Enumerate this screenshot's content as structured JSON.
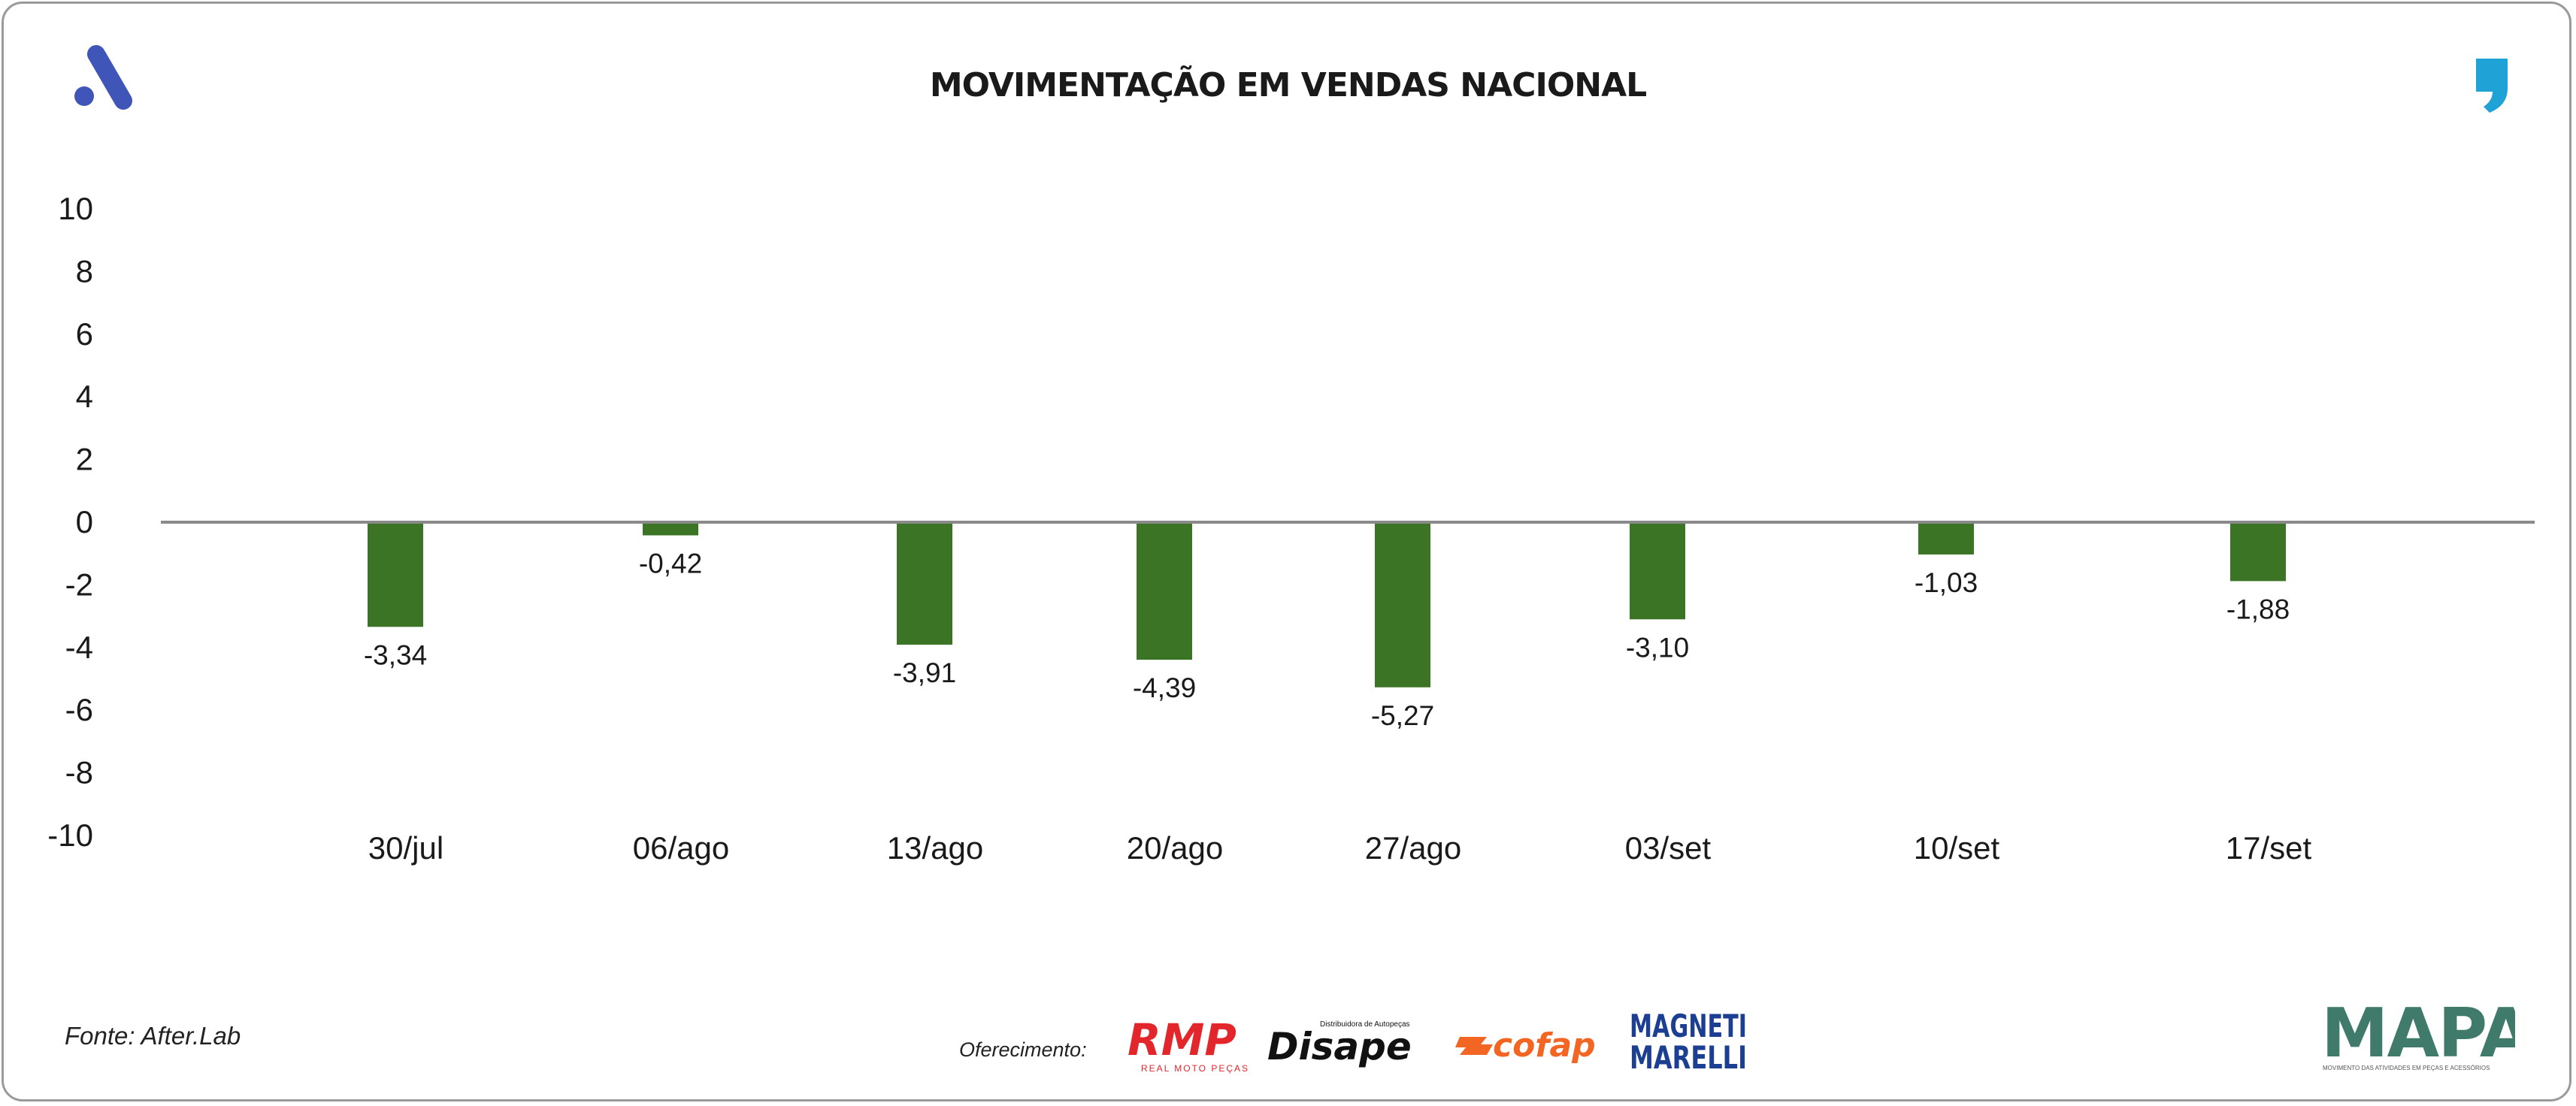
{
  "title": "MOVIMENTAÇÃO EM VENDAS NACIONAL",
  "source": "Fonte: After.Lab",
  "offer_label": "Oferecimento:",
  "colors": {
    "bar": "#3a7424",
    "axis": "#8a8a8a",
    "text": "#1a1a1a",
    "brand": "#3f56b8",
    "quote": "#1fa3d6"
  },
  "icons": {
    "brand_logo": "afterlab-a-logo",
    "quote": "comma-quote-icon"
  },
  "sponsors": [
    {
      "name": "RMP",
      "subtitle": "REAL MOTO PEÇAS",
      "color": "#e3262c"
    },
    {
      "name": "Disape",
      "subtitle": "Distribuidora de Autopeças",
      "color": "#111111"
    },
    {
      "name": "cofap",
      "color": "#f26522"
    },
    {
      "name": "MAGNETI MARELLI",
      "color": "#1c3f94"
    }
  ],
  "mapa": {
    "name": "MAPA",
    "subtitle": "MOVIMENTO DAS ATIVIDADES EM PEÇAS E ACESSÓRIOS"
  },
  "chart_data": {
    "type": "bar",
    "title": "MOVIMENTAÇÃO EM VENDAS NACIONAL",
    "categories": [
      "30/jul",
      "06/ago",
      "13/ago",
      "20/ago",
      "27/ago",
      "03/set",
      "10/set",
      "17/set"
    ],
    "values": [
      -3.34,
      -0.42,
      -3.91,
      -4.39,
      -5.27,
      -3.1,
      -1.03,
      -1.88
    ],
    "value_labels": [
      "-3,34",
      "-0,42",
      "-3,91",
      "-4,39",
      "-5,27",
      "-3,10",
      "-1,03",
      "-1,88"
    ],
    "ylim": [
      -10,
      10
    ],
    "yticks": [
      10,
      8,
      6,
      4,
      2,
      0,
      -2,
      -4,
      -6,
      -8,
      -10
    ],
    "ytick_labels": [
      "10",
      "8",
      "6",
      "4",
      "2",
      "0",
      "-2",
      "-4",
      "-6",
      "-8",
      "-10"
    ],
    "grid": false,
    "legend": "none"
  }
}
